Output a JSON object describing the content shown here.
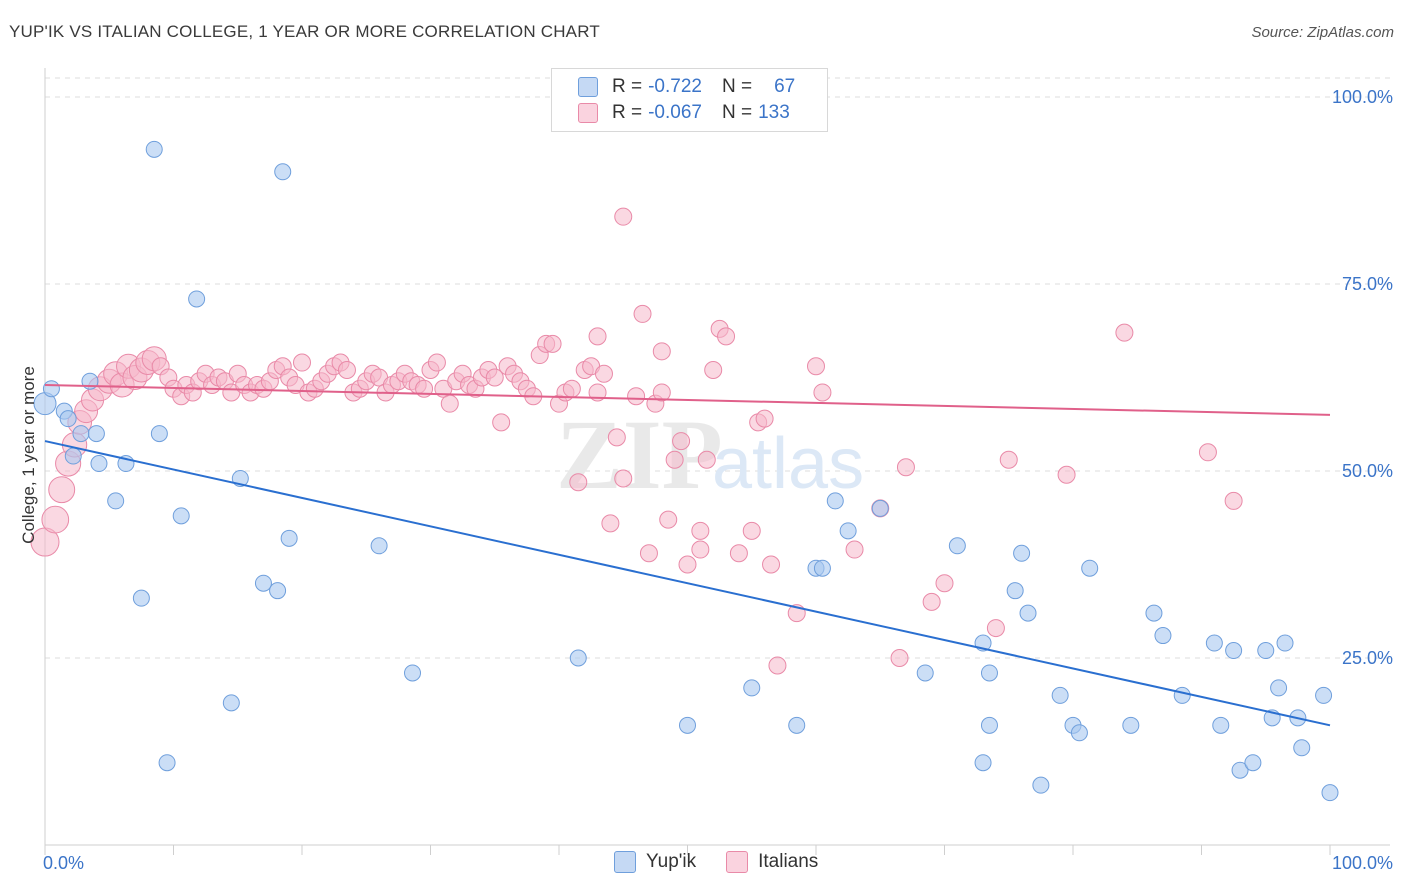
{
  "title": "YUP'IK VS ITALIAN COLLEGE, 1 YEAR OR MORE CORRELATION CHART",
  "source": "Source: ZipAtlas.com",
  "watermark": {
    "zip": "ZIP",
    "atlas": "atlas"
  },
  "legend": {
    "rows": [
      {
        "r_label": "R =",
        "r_value": "-0.722",
        "n_label": "N =",
        "n_value": "67",
        "color": "#a9c8f0"
      },
      {
        "r_label": "R =",
        "r_value": "-0.067",
        "n_label": "N =",
        "n_value": "133",
        "color": "#f5b8cb"
      }
    ]
  },
  "bottom_legend": [
    {
      "label": "Yup'ik",
      "color": "#a9c8f0"
    },
    {
      "label": "Italians",
      "color": "#f5b8cb"
    }
  ],
  "chart_data": {
    "type": "scatter",
    "title": "YUP'IK VS ITALIAN COLLEGE, 1 YEAR OR MORE CORRELATION CHART",
    "xlabel": "",
    "ylabel": "College, 1 year or more",
    "xlim": [
      0,
      100
    ],
    "ylim": [
      0,
      102
    ],
    "x_tick_labels": [
      "0.0%",
      "100.0%"
    ],
    "y_ticks": [
      25,
      50,
      75,
      100
    ],
    "y_tick_labels": [
      "25.0%",
      "50.0%",
      "75.0%",
      "100.0%"
    ],
    "grid": true,
    "colors": {
      "yupik_fill": "#a9c8f0",
      "yupik_stroke": "#6f9fdc",
      "yupik_line": "#2a6fd0",
      "italians_fill": "#f5b8cb",
      "italians_stroke": "#e98aa8",
      "italians_line": "#e0608a",
      "tick_label": "#3b74c8"
    },
    "series": [
      {
        "name": "Yup'ik",
        "trend": {
          "x": [
            0,
            100
          ],
          "y": [
            54,
            16
          ]
        },
        "points": [
          [
            0,
            59
          ],
          [
            0.5,
            61
          ],
          [
            1.5,
            58
          ],
          [
            1.8,
            57
          ],
          [
            2.2,
            52
          ],
          [
            2.8,
            55
          ],
          [
            3.5,
            62
          ],
          [
            4,
            55
          ],
          [
            4.2,
            51
          ],
          [
            5.5,
            46
          ],
          [
            6.3,
            51
          ],
          [
            7.5,
            33
          ],
          [
            8.5,
            93
          ],
          [
            8.9,
            55
          ],
          [
            9.5,
            11
          ],
          [
            10.6,
            44
          ],
          [
            11.8,
            73
          ],
          [
            14.5,
            19
          ],
          [
            15.2,
            49
          ],
          [
            17,
            35
          ],
          [
            18.1,
            34
          ],
          [
            18.5,
            90
          ],
          [
            19,
            41
          ],
          [
            26,
            40
          ],
          [
            28.6,
            23
          ],
          [
            41.5,
            25
          ],
          [
            50,
            16
          ],
          [
            55,
            21
          ],
          [
            58.5,
            16
          ],
          [
            60,
            37
          ],
          [
            60.5,
            37
          ],
          [
            61.5,
            46
          ],
          [
            62.5,
            42
          ],
          [
            65,
            45
          ],
          [
            68.5,
            23
          ],
          [
            71,
            40
          ],
          [
            73,
            27
          ],
          [
            73.5,
            23
          ],
          [
            75.5,
            34
          ],
          [
            73,
            11
          ],
          [
            73.5,
            16
          ],
          [
            76,
            39
          ],
          [
            76.5,
            31
          ],
          [
            77.5,
            8
          ],
          [
            79,
            20
          ],
          [
            80,
            16
          ],
          [
            80.5,
            15
          ],
          [
            81.3,
            37
          ],
          [
            84.5,
            16
          ],
          [
            86.3,
            31
          ],
          [
            87,
            28
          ],
          [
            88.5,
            20
          ],
          [
            91,
            27
          ],
          [
            91.5,
            16
          ],
          [
            92.5,
            26
          ],
          [
            93,
            10
          ],
          [
            94,
            11
          ],
          [
            95,
            26
          ],
          [
            95.5,
            17
          ],
          [
            96,
            21
          ],
          [
            96.5,
            27
          ],
          [
            97.5,
            17
          ],
          [
            97.8,
            13
          ],
          [
            99.5,
            20
          ],
          [
            100,
            7
          ]
        ]
      },
      {
        "name": "Italians",
        "trend": {
          "x": [
            0,
            100
          ],
          "y": [
            61.5,
            57.5
          ]
        },
        "points": [
          [
            0,
            40.5
          ],
          [
            0.8,
            43.5
          ],
          [
            1.3,
            47.5
          ],
          [
            1.8,
            51
          ],
          [
            2.3,
            53.5
          ],
          [
            2.7,
            56.5
          ],
          [
            3.2,
            58
          ],
          [
            3.7,
            59.5
          ],
          [
            4.3,
            61
          ],
          [
            5,
            62
          ],
          [
            5.5,
            63
          ],
          [
            6,
            61.5
          ],
          [
            6.5,
            64
          ],
          [
            7,
            62.5
          ],
          [
            7.5,
            63.5
          ],
          [
            8,
            64.5
          ],
          [
            8.5,
            65
          ],
          [
            9,
            64
          ],
          [
            9.6,
            62.5
          ],
          [
            10,
            61
          ],
          [
            10.6,
            60
          ],
          [
            11,
            61.5
          ],
          [
            11.5,
            60.5
          ],
          [
            12,
            62
          ],
          [
            12.5,
            63
          ],
          [
            13,
            61.5
          ],
          [
            13.5,
            62.5
          ],
          [
            14,
            62
          ],
          [
            14.5,
            60.5
          ],
          [
            15,
            63
          ],
          [
            15.5,
            61.5
          ],
          [
            16,
            60.5
          ],
          [
            16.5,
            61.5
          ],
          [
            17,
            61
          ],
          [
            17.5,
            62
          ],
          [
            18,
            63.5
          ],
          [
            18.5,
            64
          ],
          [
            19,
            62.5
          ],
          [
            19.5,
            61.5
          ],
          [
            20,
            64.5
          ],
          [
            20.5,
            60.5
          ],
          [
            21,
            61
          ],
          [
            21.5,
            62
          ],
          [
            22,
            63
          ],
          [
            22.5,
            64
          ],
          [
            23,
            64.5
          ],
          [
            23.5,
            63.5
          ],
          [
            24,
            60.5
          ],
          [
            24.5,
            61
          ],
          [
            25,
            62
          ],
          [
            25.5,
            63
          ],
          [
            26,
            62.5
          ],
          [
            26.5,
            60.5
          ],
          [
            27,
            61.5
          ],
          [
            27.5,
            62
          ],
          [
            28,
            63
          ],
          [
            28.5,
            62
          ],
          [
            29,
            61.5
          ],
          [
            29.5,
            61
          ],
          [
            30,
            63.5
          ],
          [
            30.5,
            64.5
          ],
          [
            31,
            61
          ],
          [
            31.5,
            59
          ],
          [
            32,
            62
          ],
          [
            32.5,
            63
          ],
          [
            33,
            61.5
          ],
          [
            33.5,
            61
          ],
          [
            34,
            62.5
          ],
          [
            34.5,
            63.5
          ],
          [
            35,
            62.5
          ],
          [
            35.5,
            56.5
          ],
          [
            36,
            64
          ],
          [
            36.5,
            63
          ],
          [
            37,
            62
          ],
          [
            37.5,
            61
          ],
          [
            38,
            60
          ],
          [
            38.5,
            65.5
          ],
          [
            39,
            67
          ],
          [
            39.5,
            67
          ],
          [
            40,
            59
          ],
          [
            40.5,
            60.5
          ],
          [
            41,
            61
          ],
          [
            41.5,
            48.5
          ],
          [
            42,
            63.5
          ],
          [
            42.5,
            64
          ],
          [
            43,
            60.5
          ],
          [
            43.5,
            63
          ],
          [
            44,
            43
          ],
          [
            44.5,
            54.5
          ],
          [
            45,
            49
          ],
          [
            46,
            60
          ],
          [
            46.5,
            71
          ],
          [
            47,
            39
          ],
          [
            47.5,
            59
          ],
          [
            48,
            60.5
          ],
          [
            48.5,
            43.5
          ],
          [
            49,
            51.5
          ],
          [
            49.5,
            54
          ],
          [
            50,
            37.5
          ],
          [
            51,
            39.5
          ],
          [
            51.5,
            51.5
          ],
          [
            52,
            63.5
          ],
          [
            52.5,
            69
          ],
          [
            53,
            68
          ],
          [
            54,
            39
          ],
          [
            55,
            42
          ],
          [
            55.5,
            56.5
          ],
          [
            56,
            57
          ],
          [
            58.5,
            31
          ],
          [
            60.5,
            60.5
          ],
          [
            63,
            39.5
          ],
          [
            65,
            45
          ],
          [
            67,
            50.5
          ],
          [
            69,
            32.5
          ],
          [
            70,
            35
          ],
          [
            74,
            29
          ],
          [
            75,
            51.5
          ],
          [
            79.5,
            49.5
          ],
          [
            84,
            68.5
          ],
          [
            90.5,
            52.5
          ],
          [
            92.5,
            46
          ],
          [
            60,
            64
          ],
          [
            56.5,
            37.5
          ],
          [
            66.5,
            25
          ],
          [
            57,
            24
          ],
          [
            51,
            42
          ],
          [
            48,
            66
          ],
          [
            43,
            68
          ],
          [
            45,
            84
          ]
        ]
      }
    ]
  }
}
